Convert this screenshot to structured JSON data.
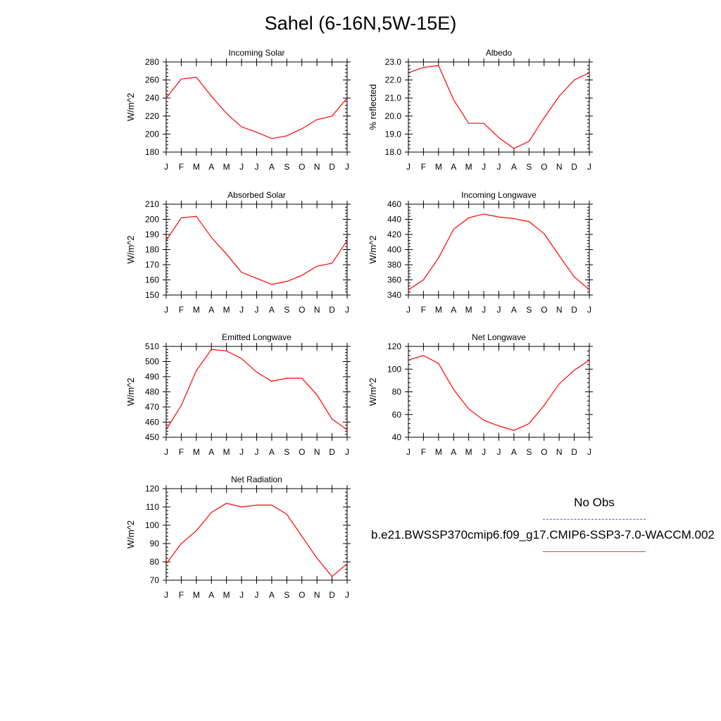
{
  "title": "Sahel (6-16N,5W-15E)",
  "legend": {
    "obs_label": "No Obs",
    "obs_color": "#5555ff",
    "model_label": "b.e21.BWSSP370cmip6.f09_g17.CMIP6-SSP3-7.0-WACCM.002",
    "model_color": "#ff0000"
  },
  "chart_data": [
    {
      "type": "line",
      "title": "Incoming Solar",
      "ylabel": "W/m^2",
      "categories": [
        "J",
        "F",
        "M",
        "A",
        "M",
        "J",
        "J",
        "A",
        "S",
        "O",
        "N",
        "D",
        "J"
      ],
      "ylim": [
        180,
        280
      ],
      "yticks": [
        180,
        200,
        220,
        240,
        260,
        280
      ],
      "ytick_labels": [
        "180",
        "200",
        "220",
        "240",
        "260",
        "280"
      ],
      "series": [
        {
          "values": [
            240,
            261,
            263,
            242,
            223,
            208,
            202,
            195,
            198,
            206,
            216,
            220,
            240
          ]
        }
      ]
    },
    {
      "type": "line",
      "title": "Albedo",
      "ylabel": "% reflected",
      "categories": [
        "J",
        "F",
        "M",
        "A",
        "M",
        "J",
        "J",
        "A",
        "S",
        "O",
        "N",
        "D",
        "J"
      ],
      "ylim": [
        18,
        23
      ],
      "yticks": [
        18,
        19,
        20,
        21,
        22,
        23
      ],
      "ytick_labels": [
        "18.0",
        "19.0",
        "20.0",
        "21.0",
        "22.0",
        "23.0"
      ],
      "series": [
        {
          "values": [
            22.4,
            22.7,
            22.8,
            20.9,
            19.6,
            19.6,
            18.8,
            18.2,
            18.6,
            19.9,
            21.1,
            22.0,
            22.4
          ]
        }
      ]
    },
    {
      "type": "line",
      "title": "Absorbed Solar",
      "ylabel": "W/m^2",
      "categories": [
        "J",
        "F",
        "M",
        "A",
        "M",
        "J",
        "J",
        "A",
        "S",
        "O",
        "N",
        "D",
        "J"
      ],
      "ylim": [
        150,
        210
      ],
      "yticks": [
        150,
        160,
        170,
        180,
        190,
        200,
        210
      ],
      "ytick_labels": [
        "150",
        "160",
        "170",
        "180",
        "190",
        "200",
        "210"
      ],
      "series": [
        {
          "values": [
            186,
            201,
            202,
            188,
            177,
            165,
            161,
            157,
            159,
            163,
            169,
            171,
            186
          ]
        }
      ]
    },
    {
      "type": "line",
      "title": "Incoming Longwave",
      "ylabel": "W/m^2",
      "categories": [
        "J",
        "F",
        "M",
        "A",
        "M",
        "J",
        "J",
        "A",
        "S",
        "O",
        "N",
        "D",
        "J"
      ],
      "ylim": [
        340,
        460
      ],
      "yticks": [
        340,
        360,
        380,
        400,
        420,
        440,
        460
      ],
      "ytick_labels": [
        "340",
        "360",
        "380",
        "400",
        "420",
        "440",
        "460"
      ],
      "series": [
        {
          "values": [
            347,
            360,
            389,
            427,
            442,
            447,
            443,
            441,
            437,
            421,
            392,
            364,
            347
          ]
        }
      ]
    },
    {
      "type": "line",
      "title": "Emitted Longwave",
      "ylabel": "W/m^2",
      "categories": [
        "J",
        "F",
        "M",
        "A",
        "M",
        "J",
        "J",
        "A",
        "S",
        "O",
        "N",
        "D",
        "J"
      ],
      "ylim": [
        450,
        510
      ],
      "yticks": [
        450,
        460,
        470,
        480,
        490,
        500,
        510
      ],
      "ytick_labels": [
        "450",
        "460",
        "470",
        "480",
        "490",
        "500",
        "510"
      ],
      "series": [
        {
          "values": [
            455,
            471,
            494,
            508,
            507,
            502,
            493,
            487,
            489,
            489,
            478,
            462,
            455
          ]
        }
      ]
    },
    {
      "type": "line",
      "title": "Net Longwave",
      "ylabel": "W/m^2",
      "categories": [
        "J",
        "F",
        "M",
        "A",
        "M",
        "J",
        "J",
        "A",
        "S",
        "O",
        "N",
        "D",
        "J"
      ],
      "ylim": [
        40,
        120
      ],
      "yticks": [
        40,
        60,
        80,
        100,
        120
      ],
      "ytick_labels": [
        "40",
        "60",
        "80",
        "100",
        "120"
      ],
      "series": [
        {
          "values": [
            108,
            112,
            105,
            82,
            65,
            55,
            50,
            46,
            52,
            68,
            87,
            99,
            108
          ]
        }
      ]
    },
    {
      "type": "line",
      "title": "Net Radiation",
      "ylabel": "W/m^2",
      "categories": [
        "J",
        "F",
        "M",
        "A",
        "M",
        "J",
        "J",
        "A",
        "S",
        "O",
        "N",
        "D",
        "J"
      ],
      "ylim": [
        70,
        120
      ],
      "yticks": [
        70,
        80,
        90,
        100,
        110,
        120
      ],
      "ytick_labels": [
        "70",
        "80",
        "90",
        "100",
        "110",
        "120"
      ],
      "series": [
        {
          "values": [
            79,
            90,
            97,
            107,
            112,
            110,
            111,
            111,
            106,
            94,
            82,
            72,
            79
          ]
        }
      ]
    }
  ]
}
